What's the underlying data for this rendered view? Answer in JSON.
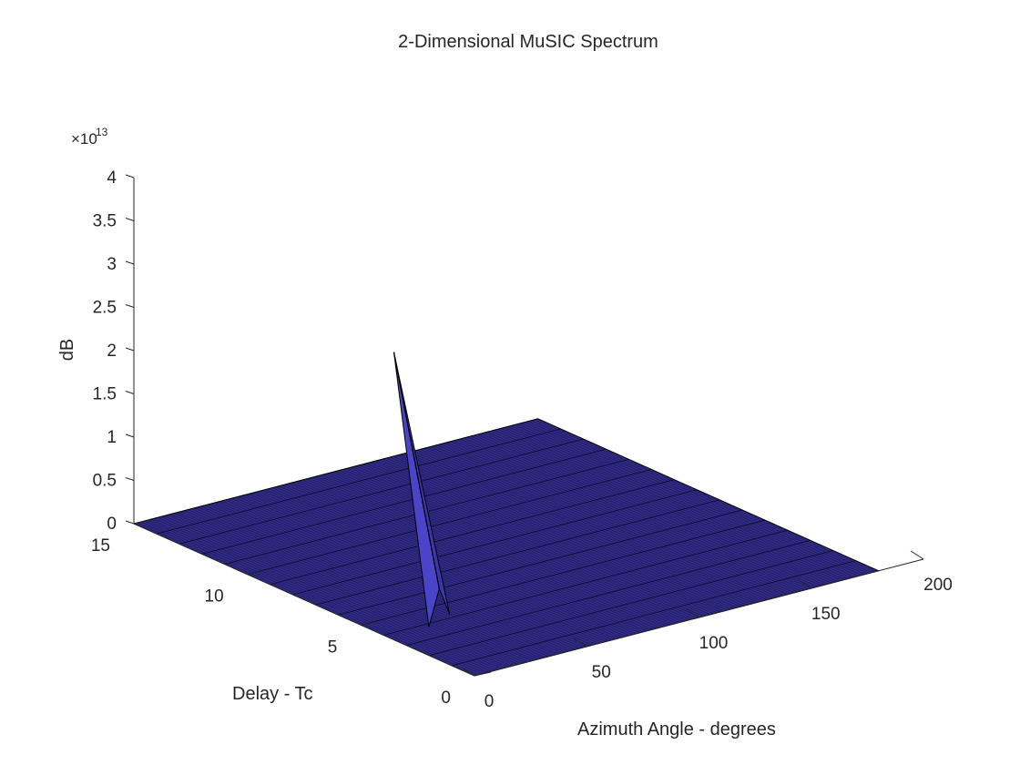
{
  "chart_data": {
    "type": "surface",
    "title": "2-Dimensional MuSIC Spectrum",
    "xlabel": "Azimuth Angle - degrees",
    "ylabel": "Delay - Tc",
    "zlabel": "dB",
    "z_exponent_multiplier": "×10",
    "z_exponent": "13",
    "xlim": [
      0,
      200
    ],
    "ylim": [
      0,
      15
    ],
    "zlim": [
      0,
      4
    ],
    "x_ticks": [
      "0",
      "50",
      "100",
      "150",
      "200"
    ],
    "y_ticks": [
      "0",
      "5",
      "10",
      "15"
    ],
    "z_ticks": [
      "0",
      "0.5",
      "1",
      "1.5",
      "2",
      "2.5",
      "3",
      "3.5",
      "4"
    ],
    "z_tick_values": [
      0,
      0.5,
      1,
      1.5,
      2,
      2.5,
      3,
      3.5,
      4
    ],
    "surface_x_range": [
      0,
      180
    ],
    "surface_y_range": [
      0,
      15
    ],
    "baseline_z": 0,
    "peak": {
      "x": 45,
      "y": 8,
      "z": 2.5,
      "z_units": "x1e13"
    },
    "peak_width_x": 3,
    "peak_width_y": 2,
    "grid": false,
    "colors": {
      "surface": "#2e2a85",
      "surface_edge": "#000000",
      "peak_left": "#4a45c8",
      "peak_right": "#3b36b0",
      "axis": "#262626"
    }
  }
}
